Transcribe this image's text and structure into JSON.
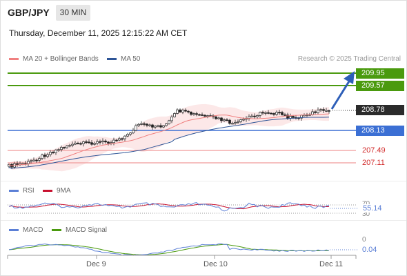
{
  "header": {
    "symbol": "GBP/JPY",
    "timeframe": "30 MIN",
    "datetime": "Thursday, December 11, 2025 12:15:22 AM CET"
  },
  "legend": {
    "ma20": "MA 20 + Bollinger Bands",
    "ma50": "MA 50",
    "credit": "Research © 2025 Trading Central"
  },
  "levels": {
    "l1": "209.95",
    "l2": "209.57",
    "last": "208.78",
    "pivot": "208.13",
    "s1": "207.49",
    "s2": "207.11"
  },
  "rsi": {
    "label": "RSI",
    "ma_label": "9MA",
    "upper": "70",
    "lower": "30",
    "value": "55.14"
  },
  "macd": {
    "label": "MACD",
    "signal_label": "MACD Signal",
    "zero": "0",
    "value": "0.04"
  },
  "xaxis": {
    "d1": "Dec 9",
    "d2": "Dec 10",
    "d3": "Dec 11"
  },
  "colors": {
    "ma20": "#f08080",
    "ma50": "#2e5597",
    "green": "#4a9a0e",
    "blue": "#3b6fd4",
    "red": "#d22b2b",
    "rsi": "#5b7fd6",
    "rsi_ma": "#c8102e",
    "macd": "#5b7fd6",
    "signal": "#4a9a0e"
  }
}
